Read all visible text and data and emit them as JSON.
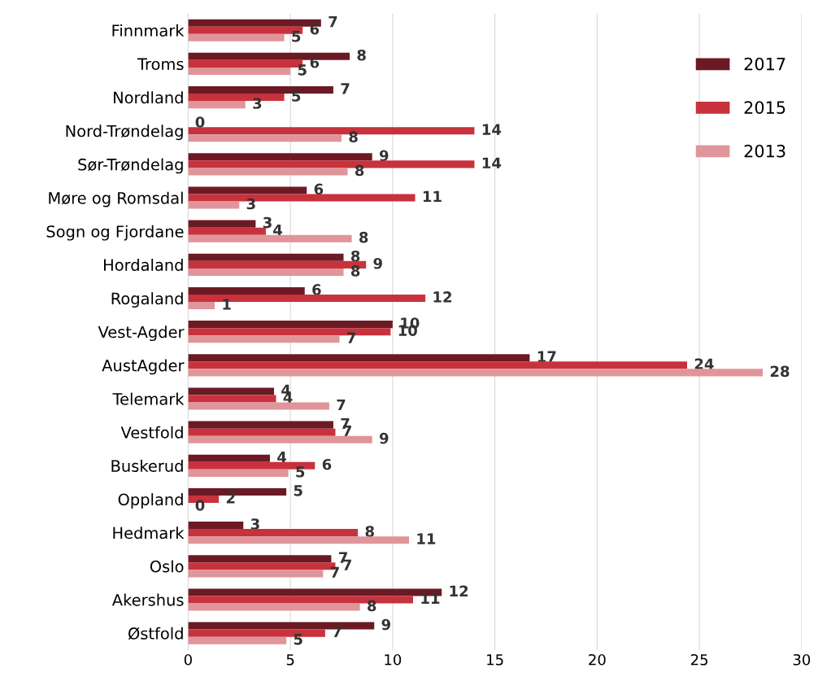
{
  "chart_data": {
    "type": "bar",
    "orientation": "horizontal",
    "categories": [
      "Finnmark",
      "Troms",
      "Nordland",
      "Nord-Trøndelag",
      "Sør-Trøndelag",
      "Møre og Romsdal",
      "Sogn og Fjordane",
      "Hordaland",
      "Rogaland",
      "Vest-Agder",
      "AustAgder",
      "Telemark",
      "Vestfold",
      "Buskerud",
      "Oppland",
      "Hedmark",
      "Oslo",
      "Akershus",
      "Østfold"
    ],
    "series": [
      {
        "name": "2017",
        "color": "#6b1a24",
        "values": [
          6.5,
          7.9,
          7.1,
          0,
          9.0,
          5.8,
          3.3,
          7.6,
          5.7,
          10.0,
          16.7,
          4.2,
          7.1,
          4.0,
          4.8,
          2.7,
          7.0,
          12.4,
          9.1
        ],
        "value_labels": [
          "7",
          "8",
          "7",
          "0",
          "9",
          "6",
          "3",
          "8",
          "6",
          "10",
          "17",
          "4",
          "7",
          "4",
          "5",
          "3",
          "7",
          "12",
          "9"
        ]
      },
      {
        "name": "2015",
        "color": "#c8323c",
        "values": [
          5.6,
          5.6,
          4.7,
          14.0,
          14.0,
          11.1,
          3.8,
          8.7,
          11.6,
          9.9,
          24.4,
          4.3,
          7.2,
          6.2,
          1.5,
          8.3,
          7.2,
          11.0,
          6.7
        ],
        "value_labels": [
          "6",
          "6",
          "5",
          "14",
          "14",
          "11",
          "4",
          "9",
          "12",
          "10",
          "24",
          "4",
          "7",
          "6",
          "2",
          "8",
          "7",
          "11",
          "7"
        ]
      },
      {
        "name": "2013",
        "color": "#e0959a",
        "values": [
          4.7,
          5.0,
          2.8,
          7.5,
          7.8,
          2.5,
          8.0,
          7.6,
          1.3,
          7.4,
          28.1,
          6.9,
          9.0,
          4.9,
          0,
          10.8,
          6.6,
          8.4,
          4.8
        ],
        "value_labels": [
          "5",
          "5",
          "3",
          "8",
          "8",
          "3",
          "8",
          "8",
          "1",
          "7",
          "28",
          "7",
          "9",
          "5",
          "0",
          "11",
          "7",
          "8",
          "5"
        ]
      }
    ],
    "xlim": [
      0,
      30
    ],
    "xticks": [
      0,
      5,
      10,
      15,
      20,
      25,
      30
    ],
    "grid": "x",
    "legend": "right"
  }
}
